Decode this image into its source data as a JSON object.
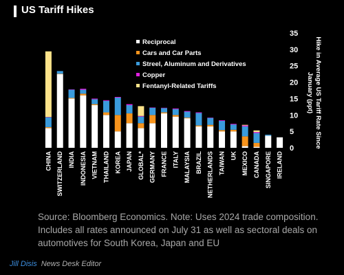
{
  "chart_data": {
    "type": "stacked_bar",
    "title": "US Tariff Hikes",
    "y_label": "Hike in Average US Tariff Rate Since January (ppt)",
    "note": "Source: Bloomberg Economics. Note: Uses 2024 trade composition. Includes all rates announced on July 31 as well as sectoral deals on automotives for South Korea, Japan and EU",
    "categories": [
      "CHINA",
      "SWITZERLAND",
      "INDIA",
      "INDONESIA",
      "VIETNAM",
      "THAILAND",
      "KOREA",
      "JAPAN",
      "GLOBAL*",
      "GERMANY",
      "FRANCE",
      "ITALY",
      "MALAYSIA",
      "BRAZIL",
      "NETHERLANDS",
      "TAIWAN",
      "UK",
      "MEXICO",
      "CANADA",
      "SINGAPORE",
      "IRELAND"
    ],
    "series": [
      {
        "name": "Reciprocal",
        "color": "#ffffff",
        "values": [
          6,
          22.5,
          15,
          16,
          13,
          10,
          5,
          7.5,
          6,
          7.5,
          10.5,
          9.5,
          9,
          6.5,
          6.5,
          5,
          5,
          0.5,
          0.3,
          3.7,
          3.2
        ]
      },
      {
        "name": "Cars and Car Parts",
        "color": "#f7941d",
        "values": [
          0.3,
          0.1,
          0.2,
          0.5,
          0.3,
          0.8,
          5,
          3,
          1.5,
          2.5,
          0.3,
          0.5,
          0.2,
          0.3,
          0.5,
          0.4,
          0.5,
          3,
          1.2,
          0,
          0
        ]
      },
      {
        "name": "Streel, Aluminum and Derivatives",
        "color": "#3a9bdc",
        "values": [
          3,
          0.8,
          2.5,
          1.2,
          1.5,
          3.5,
          5.3,
          2.5,
          2,
          2.2,
          1.3,
          1.8,
          1.8,
          3.8,
          2.1,
          2.8,
          1.6,
          3,
          3,
          0.3,
          0
        ]
      },
      {
        "name": "Copper",
        "color": "#e020e0",
        "values": [
          0.1,
          0,
          0.1,
          0.3,
          0.2,
          0.2,
          0.2,
          0.3,
          0.2,
          0.1,
          0.1,
          0.2,
          0.2,
          0.2,
          0.1,
          0.2,
          0.2,
          0.3,
          0.3,
          0,
          0
        ]
      },
      {
        "name": "Fentanyl-Related Tariffs",
        "color": "#fde38a",
        "values": [
          20,
          0,
          0,
          0,
          0,
          0,
          0,
          0,
          3,
          0,
          0,
          0,
          0,
          0,
          0,
          0,
          0,
          0.2,
          0.5,
          0,
          0
        ]
      }
    ],
    "ylim": [
      0,
      35
    ],
    "yticks": [
      0,
      5,
      10,
      15,
      20,
      25,
      30,
      35
    ],
    "grid": false,
    "legend": "top"
  },
  "footer": {
    "name": "Jill Disis",
    "role": "News Desk Editor"
  }
}
